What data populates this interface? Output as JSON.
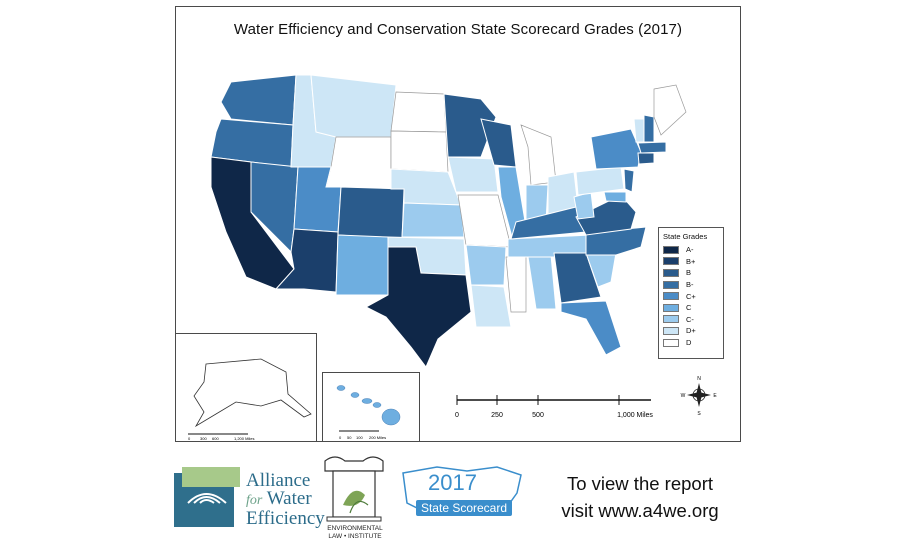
{
  "map": {
    "title": "Water Efficiency and Conservation State Scorecard Grades (2017)",
    "legend_title": "State Grades",
    "grades": [
      {
        "label": "A-",
        "color": "#0f2748"
      },
      {
        "label": "B+",
        "color": "#1b3f6b"
      },
      {
        "label": "B",
        "color": "#2a5b8c"
      },
      {
        "label": "B-",
        "color": "#356ea3"
      },
      {
        "label": "C+",
        "color": "#4b8cc7"
      },
      {
        "label": "C",
        "color": "#6eaee0"
      },
      {
        "label": "C-",
        "color": "#9ccbee"
      },
      {
        "label": "D+",
        "color": "#cde6f6"
      },
      {
        "label": "D",
        "color": "#ffffff"
      }
    ],
    "scale_labels": [
      "0",
      "250",
      "500",
      "1,000 Miles"
    ],
    "alaska_scale": [
      "0",
      "300",
      "600",
      "1,200 Miles"
    ],
    "hawaii_scale": [
      "0",
      "50",
      "100",
      "200 Miles"
    ],
    "compass": [
      "N",
      "S",
      "E",
      "W"
    ]
  },
  "footer": {
    "awe": {
      "line1": "Alliance",
      "for": "for",
      "line2": "Water",
      "line3": "Efficiency"
    },
    "eli": {
      "line1": "ENVIRONMENTAL",
      "line2": "LAW • INSTITUTE"
    },
    "scorecard": {
      "year": "2017",
      "label": "State Scorecard"
    },
    "cta": {
      "line1": "To view the report",
      "line2": "visit www.a4we.org"
    }
  }
}
